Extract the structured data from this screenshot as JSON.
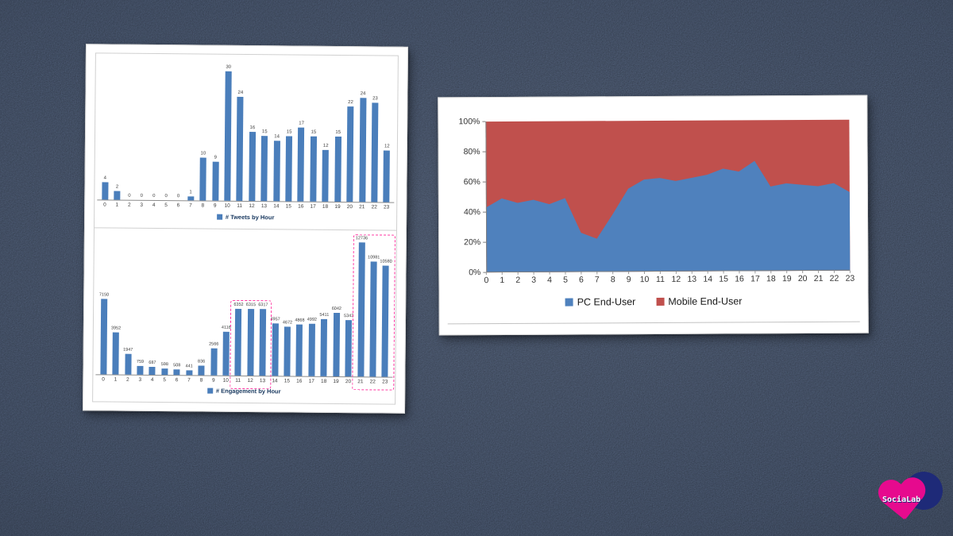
{
  "chart_data": [
    {
      "type": "bar",
      "legend_label": "# Tweets by Hour",
      "categories": [
        "0",
        "1",
        "2",
        "3",
        "4",
        "5",
        "6",
        "7",
        "8",
        "9",
        "10",
        "11",
        "12",
        "13",
        "14",
        "15",
        "16",
        "17",
        "18",
        "19",
        "20",
        "21",
        "22",
        "23"
      ],
      "values": [
        4,
        2,
        0,
        0,
        0,
        0,
        0,
        1,
        10,
        9,
        30,
        24,
        16,
        15,
        14,
        15,
        17,
        15,
        12,
        15,
        22,
        24,
        23,
        12
      ],
      "ymax": 32,
      "bar_color": "#4a7ebb",
      "ylim": [
        0,
        32
      ],
      "legend_position": "bottom"
    },
    {
      "type": "bar",
      "legend_label": "# Engagement by Hour",
      "categories": [
        "0",
        "1",
        "2",
        "3",
        "4",
        "5",
        "6",
        "7",
        "8",
        "9",
        "10",
        "11",
        "12",
        "13",
        "14",
        "15",
        "16",
        "17",
        "18",
        "19",
        "20",
        "21",
        "22",
        "23"
      ],
      "values": [
        7150,
        3952,
        1947,
        759,
        687,
        598,
        508,
        441,
        836,
        2566,
        4116,
        6352,
        6315,
        6317,
        4957,
        4672,
        4868,
        4992,
        5411,
        6042,
        5343,
        12736,
        10981,
        10580
      ],
      "ymax": 13200,
      "bar_color": "#4a7ebb",
      "highlights": [
        [
          11,
          13
        ],
        [
          21,
          23
        ]
      ],
      "highlight_color": "#ff2f9e",
      "ylim": [
        0,
        13200
      ],
      "legend_position": "bottom"
    },
    {
      "type": "area",
      "stacked_percent": true,
      "categories": [
        "0",
        "1",
        "2",
        "3",
        "4",
        "5",
        "6",
        "7",
        "8",
        "9",
        "10",
        "11",
        "12",
        "13",
        "14",
        "15",
        "16",
        "17",
        "18",
        "19",
        "20",
        "21",
        "22",
        "23"
      ],
      "yticks": [
        "0%",
        "20%",
        "40%",
        "60%",
        "80%",
        "100%"
      ],
      "ylim": [
        0,
        100
      ],
      "series": [
        {
          "name": "PC End-User",
          "color": "#4f81bd",
          "values": [
            43,
            49,
            46,
            48,
            45,
            49,
            26,
            22,
            38,
            55,
            61,
            62,
            60,
            62,
            64,
            68,
            66,
            73,
            56,
            58,
            57,
            56,
            58,
            52
          ]
        },
        {
          "name": "Mobile End-User",
          "color": "#c0504d",
          "values": [
            57,
            51,
            54,
            52,
            55,
            51,
            74,
            78,
            62,
            45,
            39,
            38,
            40,
            38,
            36,
            32,
            34,
            27,
            44,
            42,
            43,
            44,
            42,
            48
          ]
        }
      ],
      "legend_position": "bottom"
    }
  ],
  "logo": {
    "text": "SociaLab",
    "heart_color": "#e60a8e",
    "circle_color": "#1e2a78"
  }
}
